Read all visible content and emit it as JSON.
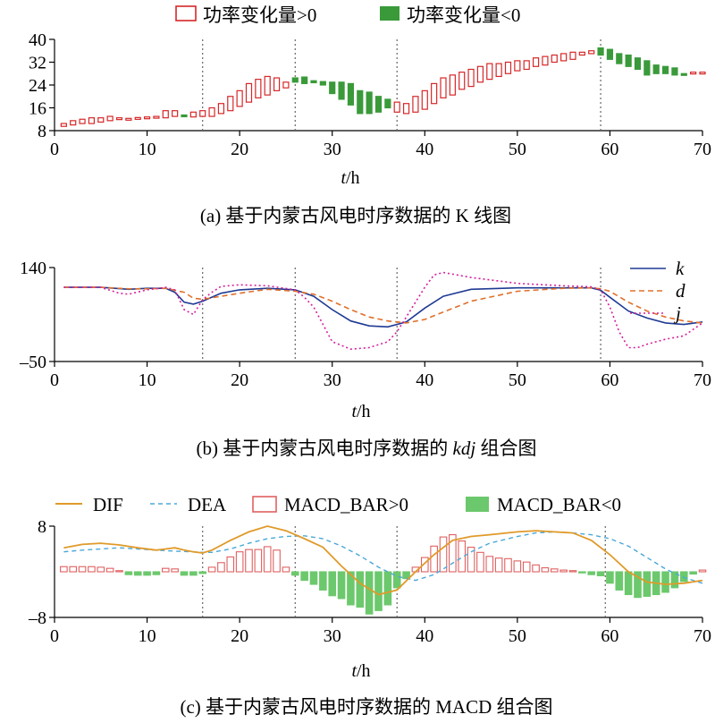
{
  "chart_data": [
    {
      "type": "candlestick",
      "caption": "(a) 基于内蒙古风电时序数据的 K 线图",
      "xlabel_italic": "t",
      "xlabel_rest": "/h",
      "xlim": [
        0,
        70
      ],
      "ylim": [
        8,
        40
      ],
      "x_ticks": [
        "0",
        "10",
        "20",
        "30",
        "40",
        "50",
        "60",
        "70"
      ],
      "y_ticks": [
        "8",
        "16",
        "24",
        "32",
        "40"
      ],
      "legend": {
        "up": "功率变化量>0",
        "down": "功率变化量<0"
      },
      "up_color": "#d62728",
      "down_color": "#3a9a3a",
      "vlines": [
        16,
        26,
        37,
        59
      ],
      "candles": [
        {
          "t": 1,
          "o": 9.5,
          "c": 10.5
        },
        {
          "t": 2,
          "o": 10.0,
          "c": 11.5
        },
        {
          "t": 3,
          "o": 10.5,
          "c": 12.0
        },
        {
          "t": 4,
          "o": 10.5,
          "c": 12.5
        },
        {
          "t": 5,
          "o": 11.0,
          "c": 12.5
        },
        {
          "t": 6,
          "o": 11.5,
          "c": 13.0
        },
        {
          "t": 7,
          "o": 12.0,
          "c": 12.5
        },
        {
          "t": 8,
          "o": 12.3,
          "c": 12.3
        },
        {
          "t": 9,
          "o": 12.4,
          "c": 12.6
        },
        {
          "t": 10,
          "o": 12.5,
          "c": 12.8
        },
        {
          "t": 11,
          "o": 12.8,
          "c": 13.0
        },
        {
          "t": 12,
          "o": 12.5,
          "c": 15.0
        },
        {
          "t": 13,
          "o": 13.0,
          "c": 15.0
        },
        {
          "t": 14,
          "o": 13.5,
          "c": 13.0
        },
        {
          "t": 15,
          "o": 12.8,
          "c": 14.5
        },
        {
          "t": 16,
          "o": 13.0,
          "c": 15.0
        },
        {
          "t": 17,
          "o": 13.0,
          "c": 16.0
        },
        {
          "t": 18,
          "o": 14.0,
          "c": 17.5
        },
        {
          "t": 19,
          "o": 15.0,
          "c": 20.0
        },
        {
          "t": 20,
          "o": 16.5,
          "c": 22.0
        },
        {
          "t": 21,
          "o": 18.0,
          "c": 24.5
        },
        {
          "t": 22,
          "o": 19.5,
          "c": 26.0
        },
        {
          "t": 23,
          "o": 20.5,
          "c": 27.0
        },
        {
          "t": 24,
          "o": 22.0,
          "c": 26.5
        },
        {
          "t": 25,
          "o": 23.0,
          "c": 25.0
        },
        {
          "t": 26,
          "o": 26.5,
          "c": 25.0
        },
        {
          "t": 27,
          "o": 26.8,
          "c": 24.5
        },
        {
          "t": 28,
          "o": 25.5,
          "c": 24.8
        },
        {
          "t": 29,
          "o": 25.2,
          "c": 24.0
        },
        {
          "t": 30,
          "o": 25.0,
          "c": 21.0
        },
        {
          "t": 31,
          "o": 25.0,
          "c": 19.0
        },
        {
          "t": 32,
          "o": 24.5,
          "c": 17.0
        },
        {
          "t": 33,
          "o": 22.0,
          "c": 14.0
        },
        {
          "t": 34,
          "o": 21.5,
          "c": 14.0
        },
        {
          "t": 35,
          "o": 20.0,
          "c": 14.5
        },
        {
          "t": 36,
          "o": 19.0,
          "c": 16.0
        },
        {
          "t": 37,
          "o": 14.5,
          "c": 18.0
        },
        {
          "t": 38,
          "o": 14.0,
          "c": 17.5
        },
        {
          "t": 39,
          "o": 14.5,
          "c": 20.0
        },
        {
          "t": 40,
          "o": 15.5,
          "c": 22.0
        },
        {
          "t": 41,
          "o": 17.5,
          "c": 24.5
        },
        {
          "t": 42,
          "o": 19.5,
          "c": 26.5
        },
        {
          "t": 43,
          "o": 20.5,
          "c": 27.5
        },
        {
          "t": 44,
          "o": 22.5,
          "c": 28.5
        },
        {
          "t": 45,
          "o": 23.5,
          "c": 29.5
        },
        {
          "t": 46,
          "o": 25.0,
          "c": 30.5
        },
        {
          "t": 47,
          "o": 26.0,
          "c": 31.5
        },
        {
          "t": 48,
          "o": 27.0,
          "c": 31.5
        },
        {
          "t": 49,
          "o": 28.0,
          "c": 32.0
        },
        {
          "t": 50,
          "o": 29.0,
          "c": 32.5
        },
        {
          "t": 51,
          "o": 29.5,
          "c": 32.5
        },
        {
          "t": 52,
          "o": 30.5,
          "c": 33.5
        },
        {
          "t": 53,
          "o": 31.0,
          "c": 34.0
        },
        {
          "t": 54,
          "o": 32.0,
          "c": 34.5
        },
        {
          "t": 55,
          "o": 32.5,
          "c": 35.0
        },
        {
          "t": 56,
          "o": 33.0,
          "c": 35.5
        },
        {
          "t": 57,
          "o": 34.5,
          "c": 35.5
        },
        {
          "t": 58,
          "o": 35.0,
          "c": 36.0
        },
        {
          "t": 59,
          "o": 37.0,
          "c": 34.5
        },
        {
          "t": 60,
          "o": 36.5,
          "c": 33.0
        },
        {
          "t": 61,
          "o": 35.0,
          "c": 31.5
        },
        {
          "t": 62,
          "o": 34.5,
          "c": 30.5
        },
        {
          "t": 63,
          "o": 33.5,
          "c": 29.5
        },
        {
          "t": 64,
          "o": 32.5,
          "c": 27.5
        },
        {
          "t": 65,
          "o": 31.0,
          "c": 28.0
        },
        {
          "t": 66,
          "o": 30.5,
          "c": 28.0
        },
        {
          "t": 67,
          "o": 30.0,
          "c": 27.5
        },
        {
          "t": 68,
          "o": 28.0,
          "c": 27.8
        },
        {
          "t": 69,
          "o": 28.5,
          "c": 28.5
        },
        {
          "t": 70,
          "o": 28.5,
          "c": 28.5
        }
      ]
    },
    {
      "type": "line",
      "caption_pre": "(b) 基于内蒙古风电时序数据的 ",
      "caption_italic": "kdj",
      "caption_post": " 组合图",
      "xlabel_italic": "t",
      "xlabel_rest": "/h",
      "xlim": [
        0,
        70
      ],
      "ylim": [
        -50,
        140
      ],
      "x_ticks": [
        "0",
        "10",
        "20",
        "30",
        "40",
        "50",
        "60",
        "70"
      ],
      "y_ticks": [
        "–50",
        "140"
      ],
      "vlines": [
        16,
        26,
        37,
        59
      ],
      "series": [
        {
          "name": "k",
          "color": "#1f3a93",
          "dash": "",
          "x": [
            1,
            5,
            8,
            10,
            12,
            13,
            14,
            15,
            16,
            18,
            20,
            23,
            26,
            28,
            30,
            32,
            34,
            36,
            38,
            40,
            42,
            45,
            50,
            55,
            58,
            59,
            60,
            62,
            64,
            66,
            68,
            70
          ],
          "y": [
            100,
            100,
            96,
            98,
            98,
            90,
            70,
            66,
            72,
            88,
            95,
            98,
            95,
            82,
            55,
            32,
            22,
            20,
            30,
            58,
            82,
            96,
            99,
            99,
            99,
            94,
            80,
            52,
            38,
            28,
            25,
            30
          ]
        },
        {
          "name": "d",
          "color": "#e0702a",
          "dash": "6,4",
          "x": [
            1,
            5,
            8,
            10,
            12,
            14,
            15,
            16,
            18,
            20,
            23,
            26,
            28,
            30,
            32,
            34,
            36,
            38,
            40,
            42,
            45,
            50,
            55,
            58,
            59,
            60,
            62,
            64,
            66,
            68,
            70
          ],
          "y": [
            100,
            100,
            97,
            97,
            98,
            90,
            78,
            76,
            82,
            88,
            96,
            92,
            86,
            72,
            55,
            40,
            32,
            28,
            35,
            50,
            72,
            92,
            98,
            99,
            97,
            92,
            70,
            52,
            40,
            32,
            28
          ]
        },
        {
          "name": "j",
          "color": "#d4209c",
          "dash": "2,3",
          "x": [
            1,
            5,
            7,
            8,
            10,
            12,
            13,
            14,
            15,
            16,
            17,
            18,
            20,
            23,
            26,
            27,
            28,
            29,
            30,
            32,
            34,
            36,
            37,
            38,
            39,
            40,
            41,
            42,
            45,
            50,
            55,
            58,
            59,
            60,
            61,
            62,
            63,
            64,
            66,
            68,
            70
          ],
          "y": [
            100,
            100,
            88,
            86,
            95,
            100,
            95,
            55,
            45,
            75,
            90,
            102,
            105,
            103,
            95,
            80,
            60,
            25,
            -10,
            -25,
            -22,
            -10,
            10,
            40,
            70,
            100,
            125,
            130,
            120,
            108,
            103,
            101,
            95,
            60,
            10,
            -22,
            -22,
            -15,
            -5,
            2,
            28
          ]
        }
      ]
    },
    {
      "type": "bar+line",
      "caption": "(c) 基于内蒙古风电时序数据的 MACD 组合图",
      "xlabel_italic": "t",
      "xlabel_rest": "/h",
      "xlim": [
        0,
        70
      ],
      "ylim": [
        -8,
        8
      ],
      "x_ticks": [
        "0",
        "10",
        "20",
        "30",
        "40",
        "50",
        "60",
        "70"
      ],
      "y_ticks": [
        "–8",
        "8"
      ],
      "vlines": [
        16,
        26,
        37,
        59.5
      ],
      "legend": {
        "dif": "DIF",
        "dea": "DEA",
        "bar_pos": "MACD_BAR>0",
        "bar_neg": "MACD_BAR<0"
      },
      "dif_color": "#e09a2a",
      "dea_color": "#4aa8d8",
      "bar_pos_color": "#e06060",
      "bar_neg_color": "#6cc86c",
      "dif": {
        "x": [
          1,
          3,
          5,
          7,
          9,
          11,
          12,
          13,
          14,
          15,
          16,
          17,
          19,
          21,
          23,
          25,
          27,
          29,
          31,
          33,
          35,
          37,
          39,
          41,
          43,
          45,
          47,
          50,
          52,
          54,
          56,
          58,
          60,
          62,
          64,
          66,
          68,
          70
        ],
        "y": [
          4.2,
          4.8,
          5.0,
          4.7,
          4.2,
          3.8,
          4.0,
          4.2,
          3.8,
          3.5,
          3.3,
          3.8,
          5.5,
          7.0,
          8.0,
          7.2,
          5.8,
          4.3,
          1.0,
          -2.0,
          -4.0,
          -3.2,
          0.0,
          3.0,
          5.5,
          6.2,
          6.5,
          7.0,
          7.2,
          7.0,
          6.8,
          5.5,
          3.0,
          0.0,
          -1.8,
          -2.2,
          -2.0,
          -1.5
        ]
      },
      "dea": {
        "x": [
          1,
          3,
          5,
          7,
          9,
          11,
          13,
          15,
          16,
          17,
          19,
          21,
          23,
          25,
          27,
          29,
          31,
          33,
          35,
          37,
          39,
          41,
          43,
          45,
          47,
          50,
          52,
          54,
          56,
          58,
          60,
          62,
          64,
          66,
          68,
          70
        ],
        "y": [
          3.5,
          3.8,
          4.0,
          4.2,
          4.0,
          3.8,
          3.6,
          3.5,
          3.4,
          3.4,
          4.0,
          5.0,
          5.8,
          6.2,
          6.3,
          5.8,
          4.5,
          2.8,
          0.8,
          -0.8,
          -1.5,
          -0.5,
          1.5,
          3.5,
          5.0,
          6.2,
          6.8,
          7.0,
          6.8,
          6.5,
          5.8,
          4.5,
          2.5,
          0.5,
          -1.0,
          -2.0
        ]
      },
      "macd_bar": [
        {
          "t": 1,
          "v": 0.9
        },
        {
          "t": 2,
          "v": 0.9
        },
        {
          "t": 3,
          "v": 0.9
        },
        {
          "t": 4,
          "v": 0.9
        },
        {
          "t": 5,
          "v": 0.8
        },
        {
          "t": 6,
          "v": 0.6
        },
        {
          "t": 7,
          "v": 0.2
        },
        {
          "t": 8,
          "v": -0.5
        },
        {
          "t": 9,
          "v": -0.6
        },
        {
          "t": 10,
          "v": -0.6
        },
        {
          "t": 11,
          "v": -0.5
        },
        {
          "t": 12,
          "v": 0.6
        },
        {
          "t": 13,
          "v": 0.5
        },
        {
          "t": 14,
          "v": -0.6
        },
        {
          "t": 15,
          "v": -0.6
        },
        {
          "t": 16,
          "v": -0.3
        },
        {
          "t": 17,
          "v": 0.8
        },
        {
          "t": 18,
          "v": 1.6
        },
        {
          "t": 19,
          "v": 2.6
        },
        {
          "t": 20,
          "v": 3.5
        },
        {
          "t": 21,
          "v": 3.9
        },
        {
          "t": 22,
          "v": 3.9
        },
        {
          "t": 23,
          "v": 4.4
        },
        {
          "t": 24,
          "v": 3.8
        },
        {
          "t": 25,
          "v": 0.8
        },
        {
          "t": 26,
          "v": -0.6
        },
        {
          "t": 27,
          "v": -1.5
        },
        {
          "t": 28,
          "v": -2.2
        },
        {
          "t": 29,
          "v": -3.2
        },
        {
          "t": 30,
          "v": -4.2
        },
        {
          "t": 31,
          "v": -4.7
        },
        {
          "t": 32,
          "v": -5.8
        },
        {
          "t": 33,
          "v": -6.2
        },
        {
          "t": 34,
          "v": -7.4
        },
        {
          "t": 35,
          "v": -6.8
        },
        {
          "t": 36,
          "v": -5.8
        },
        {
          "t": 37,
          "v": -2.8
        },
        {
          "t": 38,
          "v": -1.2
        },
        {
          "t": 39,
          "v": 0.8
        },
        {
          "t": 40,
          "v": 2.5
        },
        {
          "t": 41,
          "v": 4.5
        },
        {
          "t": 42,
          "v": 6.1
        },
        {
          "t": 43,
          "v": 6.5
        },
        {
          "t": 44,
          "v": 5.4
        },
        {
          "t": 45,
          "v": 4.3
        },
        {
          "t": 46,
          "v": 3.4
        },
        {
          "t": 47,
          "v": 2.7
        },
        {
          "t": 48,
          "v": 2.4
        },
        {
          "t": 49,
          "v": 2.3
        },
        {
          "t": 50,
          "v": 1.9
        },
        {
          "t": 51,
          "v": 1.7
        },
        {
          "t": 52,
          "v": 1.2
        },
        {
          "t": 53,
          "v": 0.7
        },
        {
          "t": 54,
          "v": 0.5
        },
        {
          "t": 55,
          "v": 0.3
        },
        {
          "t": 56,
          "v": 0.2
        },
        {
          "t": 57,
          "v": -0.2
        },
        {
          "t": 58,
          "v": -0.5
        },
        {
          "t": 59,
          "v": -0.7
        },
        {
          "t": 60,
          "v": -2.0
        },
        {
          "t": 61,
          "v": -3.2
        },
        {
          "t": 62,
          "v": -4.0
        },
        {
          "t": 63,
          "v": -4.5
        },
        {
          "t": 64,
          "v": -4.3
        },
        {
          "t": 65,
          "v": -4.0
        },
        {
          "t": 66,
          "v": -3.6
        },
        {
          "t": 67,
          "v": -2.8
        },
        {
          "t": 68,
          "v": -1.7
        },
        {
          "t": 69,
          "v": -0.4
        },
        {
          "t": 70,
          "v": 0.3
        }
      ]
    }
  ]
}
